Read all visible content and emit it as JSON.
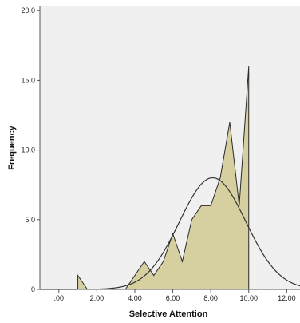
{
  "chart_data": {
    "type": "area",
    "title": "",
    "xlabel": "Selective Attention",
    "ylabel": "Frequency",
    "xlim": [
      -1.0,
      12.7
    ],
    "ylim": [
      0,
      20.3
    ],
    "x_ticks": [
      {
        "value": 0,
        "label": ".00"
      },
      {
        "value": 2,
        "label": "2.00"
      },
      {
        "value": 4,
        "label": "4.00"
      },
      {
        "value": 6,
        "label": "6.00"
      },
      {
        "value": 8,
        "label": "8.00"
      },
      {
        "value": 10,
        "label": "10.00"
      },
      {
        "value": 12,
        "label": "12.00"
      }
    ],
    "y_ticks": [
      {
        "value": 0,
        "label": "0"
      },
      {
        "value": 5,
        "label": "5.0"
      },
      {
        "value": 10,
        "label": "10.0"
      },
      {
        "value": 15,
        "label": "15.0"
      },
      {
        "value": 20,
        "label": "20.0"
      }
    ],
    "frequency_polygon": {
      "x": [
        1.0,
        1.5,
        3.5,
        4.0,
        4.5,
        5.0,
        5.5,
        6.0,
        6.5,
        7.0,
        7.5,
        8.0,
        8.5,
        9.0,
        9.5,
        10.0,
        10.0
      ],
      "y": [
        1,
        0,
        0,
        1,
        2,
        1,
        2,
        4,
        2,
        5,
        6,
        6,
        8,
        12,
        6,
        16,
        0
      ]
    },
    "normal_curve": {
      "mean": 8.1,
      "sd": 1.75,
      "peak": 8.0
    },
    "colors": {
      "plot_background": "#f0f0f0",
      "fill": "#d6cf9f",
      "stroke": "#2b2b2b",
      "curve": "#333333"
    },
    "grid": false
  }
}
